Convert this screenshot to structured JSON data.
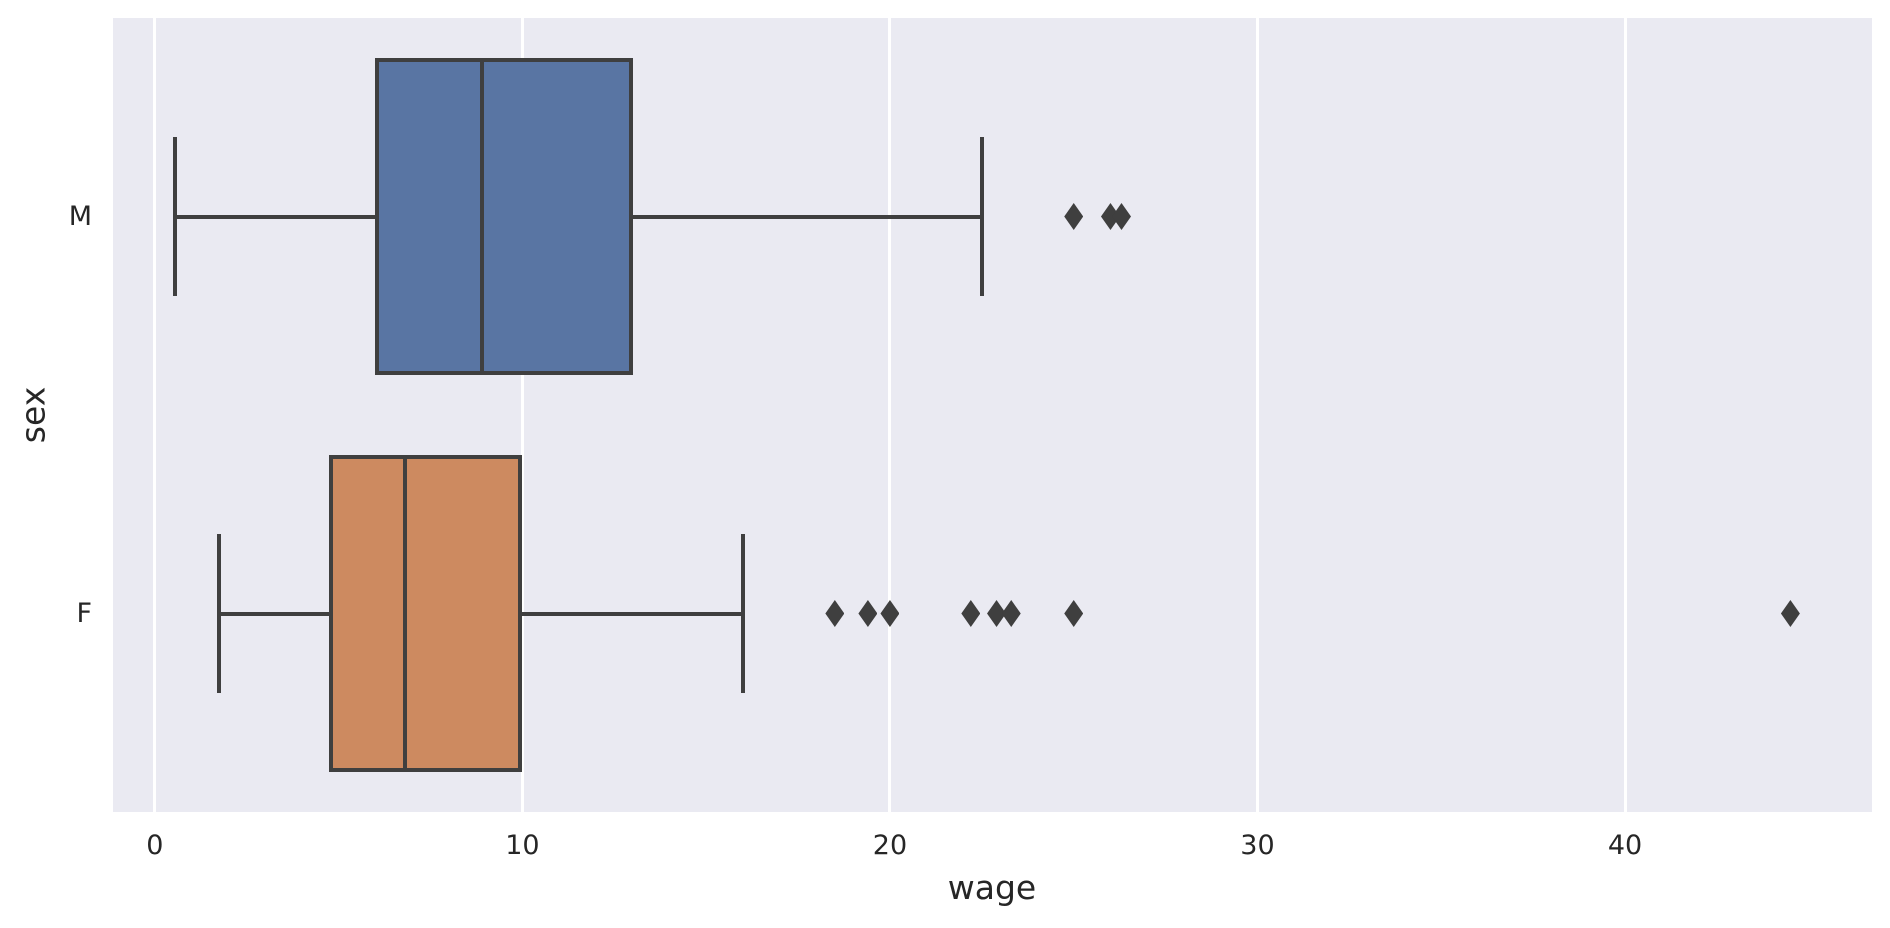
{
  "style": {
    "figure_background": "#ffffff",
    "axes_background": "#eaeaf2",
    "grid_color": "#ffffff",
    "line_color": "#3f3f3f",
    "text_color": "#262626"
  },
  "chart_data": {
    "type": "boxplot",
    "orientation": "horizontal",
    "title": "",
    "xlabel": "wage",
    "ylabel": "sex",
    "categories": [
      "M",
      "F"
    ],
    "xlim": [
      -1.14,
      46.72
    ],
    "x_ticks": [
      {
        "value": 0,
        "label": "0"
      },
      {
        "value": 10,
        "label": "10"
      },
      {
        "value": 20,
        "label": "20"
      },
      {
        "value": 30,
        "label": "30"
      },
      {
        "value": 40,
        "label": "40"
      }
    ],
    "grid": "vertical-only",
    "legend": "none",
    "series": [
      {
        "category": "M",
        "box_color": "#5975a3",
        "whisker_low": 0.55,
        "q1": 6.0,
        "median": 8.9,
        "q3": 13.0,
        "whisker_high": 22.5,
        "outliers": [
          25.0,
          26.0,
          26.3
        ]
      },
      {
        "category": "F",
        "box_color": "#cd8a60",
        "whisker_low": 1.75,
        "q1": 4.75,
        "median": 6.8,
        "q3": 10.0,
        "whisker_high": 16.0,
        "outliers": [
          18.5,
          19.4,
          20.0,
          22.2,
          22.9,
          23.3,
          25.0,
          44.5
        ]
      }
    ]
  }
}
